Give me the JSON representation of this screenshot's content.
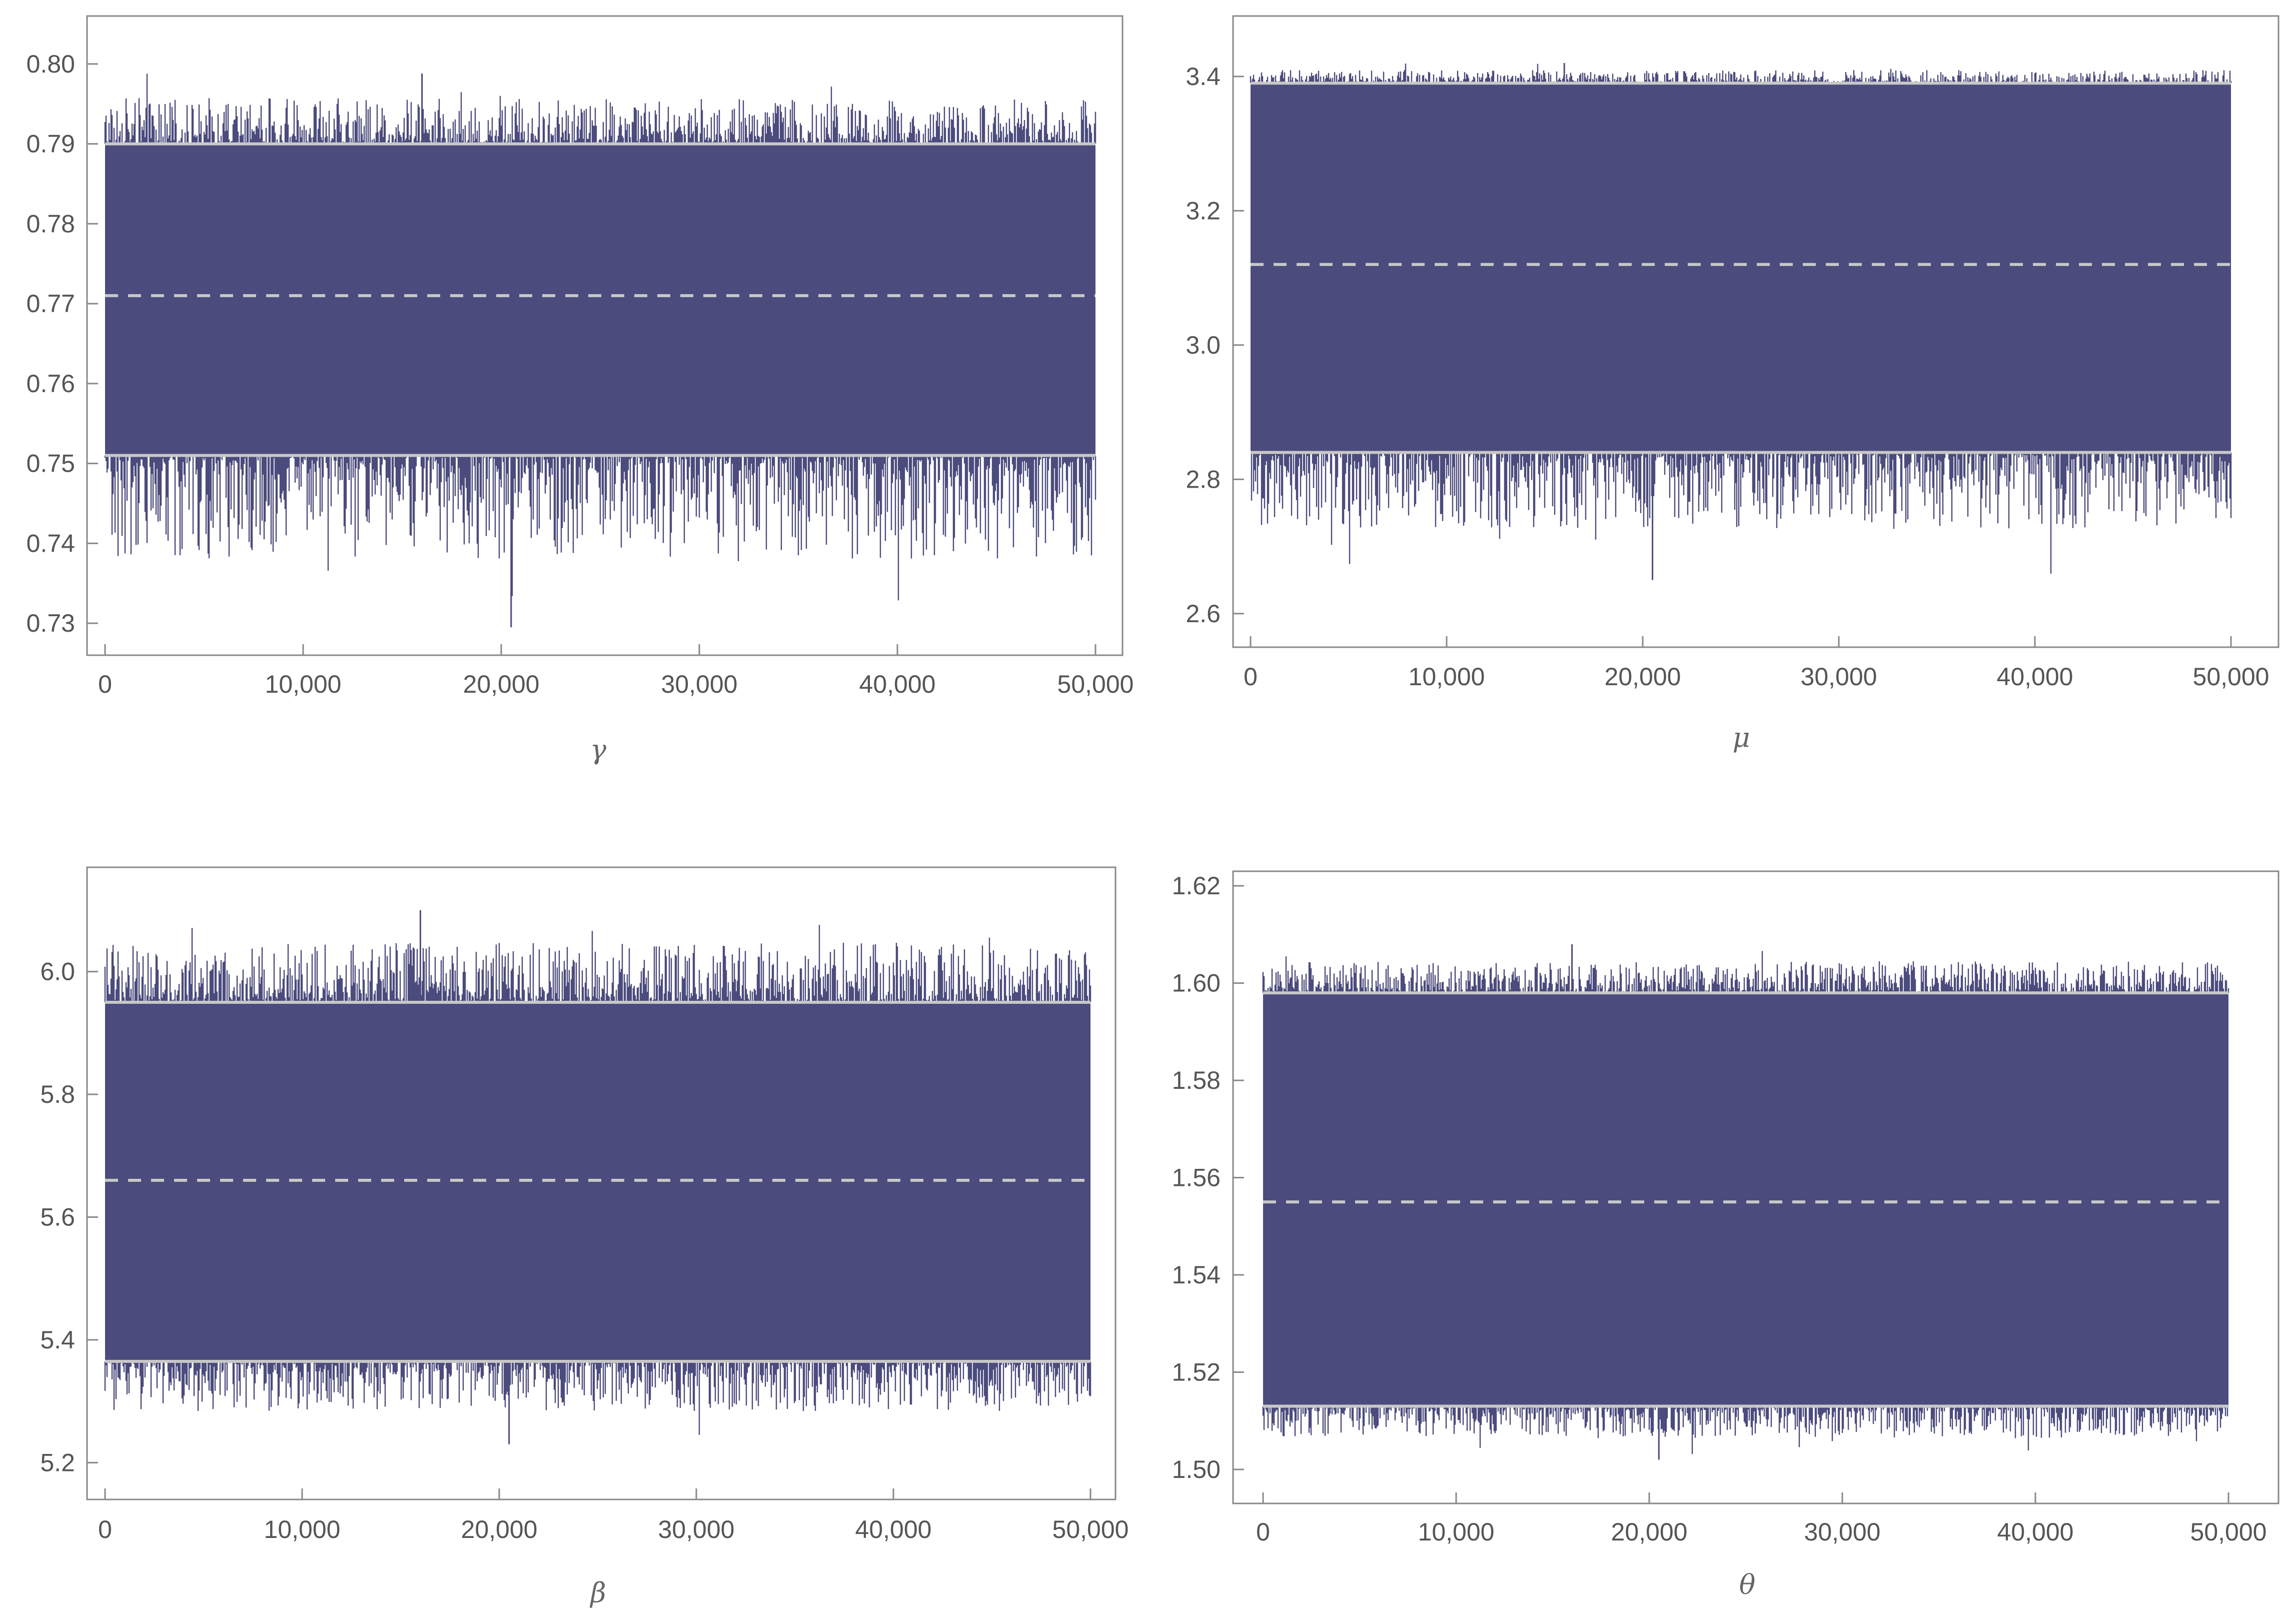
{
  "chart_data": [
    {
      "type": "line",
      "xlabel": "γ",
      "ylabel": "",
      "xlim": [
        0,
        50000
      ],
      "ylim": [
        0.726,
        0.806
      ],
      "x_ticks": [
        0,
        10000,
        20000,
        30000,
        40000,
        50000
      ],
      "x_tick_labels": [
        "0",
        "10,000",
        "20,000",
        "30,000",
        "40,000",
        "50,000"
      ],
      "y_ticks": [
        0.73,
        0.74,
        0.75,
        0.76,
        0.77,
        0.78,
        0.79,
        0.8
      ],
      "y_tick_labels": [
        "0.73",
        "0.74",
        "0.75",
        "0.76",
        "0.77",
        "0.78",
        "0.79",
        "0.80"
      ],
      "series": [
        {
          "n_samples": 50000,
          "band_low": 0.751,
          "band_high": 0.79,
          "min": 0.7295,
          "max": 0.7988
        }
      ],
      "reference_lines": {
        "lower": 0.751,
        "mean": 0.771,
        "upper": 0.79
      },
      "colors": {
        "trace": "#4b4b7d",
        "reference": "#c8c8c8"
      }
    },
    {
      "type": "line",
      "xlabel": "μ",
      "ylabel": "",
      "xlim": [
        0,
        50000
      ],
      "ylim": [
        2.55,
        3.49
      ],
      "x_ticks": [
        0,
        10000,
        20000,
        30000,
        40000,
        50000
      ],
      "x_tick_labels": [
        "0",
        "10,000",
        "20,000",
        "30,000",
        "40,000",
        "50,000"
      ],
      "y_ticks": [
        2.6,
        2.8,
        3.0,
        3.2,
        3.4
      ],
      "y_tick_labels": [
        "2.6",
        "2.8",
        "3.0",
        "3.2",
        "3.4"
      ],
      "series": [
        {
          "n_samples": 50000,
          "band_low": 2.84,
          "band_high": 3.39,
          "min": 2.65,
          "max": 3.42
        }
      ],
      "reference_lines": {
        "lower": 2.84,
        "mean": 3.12,
        "upper": 3.39
      },
      "colors": {
        "trace": "#4b4b7d",
        "reference": "#c8c8c8"
      }
    },
    {
      "type": "line",
      "xlabel": "β",
      "ylabel": "",
      "xlim": [
        0,
        50000
      ],
      "ylim": [
        5.14,
        6.17
      ],
      "x_ticks": [
        0,
        10000,
        20000,
        30000,
        40000,
        50000
      ],
      "x_tick_labels": [
        "0",
        "10,000",
        "20,000",
        "30,000",
        "40,000",
        "50,000"
      ],
      "y_ticks": [
        5.2,
        5.4,
        5.6,
        5.8,
        6.0
      ],
      "y_tick_labels": [
        "5.2",
        "5.4",
        "5.6",
        "5.8",
        "6.0"
      ],
      "series": [
        {
          "n_samples": 50000,
          "band_low": 5.365,
          "band_high": 5.95,
          "min": 5.23,
          "max": 6.1
        }
      ],
      "reference_lines": {
        "lower": 5.365,
        "mean": 5.66,
        "upper": 5.95
      },
      "colors": {
        "trace": "#4b4b7d",
        "reference": "#c8c8c8"
      }
    },
    {
      "type": "line",
      "xlabel": "θ",
      "ylabel": "",
      "xlim": [
        0,
        50000
      ],
      "ylim": [
        1.493,
        1.623
      ],
      "x_ticks": [
        0,
        10000,
        20000,
        30000,
        40000,
        50000
      ],
      "x_tick_labels": [
        "0",
        "10,000",
        "20,000",
        "30,000",
        "40,000",
        "50,000"
      ],
      "y_ticks": [
        1.5,
        1.52,
        1.54,
        1.56,
        1.58,
        1.6,
        1.62
      ],
      "y_tick_labels": [
        "1.50",
        "1.52",
        "1.54",
        "1.56",
        "1.58",
        "1.60",
        "1.62"
      ],
      "series": [
        {
          "n_samples": 50000,
          "band_low": 1.513,
          "band_high": 1.598,
          "min": 1.502,
          "max": 1.608
        }
      ],
      "reference_lines": {
        "lower": 1.513,
        "mean": 1.555,
        "upper": 1.598
      },
      "colors": {
        "trace": "#4b4b7d",
        "reference": "#c8c8c8"
      }
    }
  ]
}
